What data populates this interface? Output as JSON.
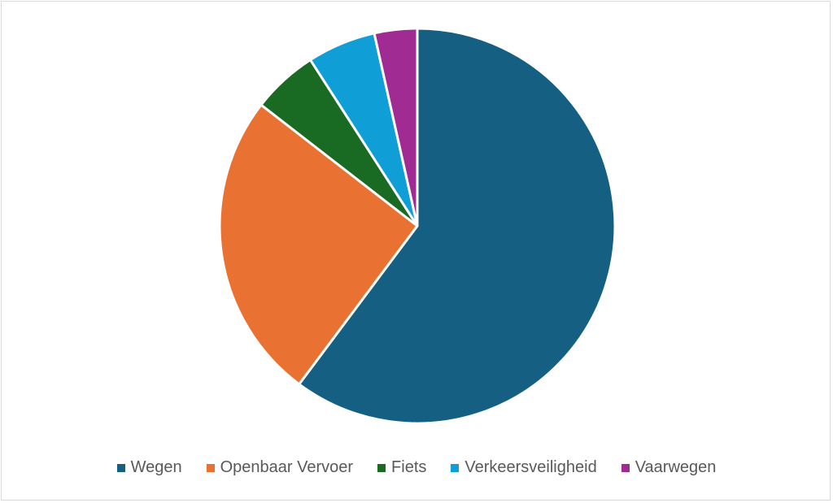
{
  "chart_data": {
    "type": "pie",
    "title": "",
    "start_angle": "top, clockwise",
    "legend_position": "bottom",
    "categories": [
      "Wegen",
      "Openbaar Vervoer",
      "Fiets",
      "Verkeersveiligheid",
      "Vaarwegen"
    ],
    "values": [
      60.2,
      25.3,
      5.4,
      5.6,
      3.5
    ],
    "colors": [
      "#156082",
      "#e97132",
      "#196b24",
      "#0f9ed5",
      "#a02b93"
    ]
  }
}
